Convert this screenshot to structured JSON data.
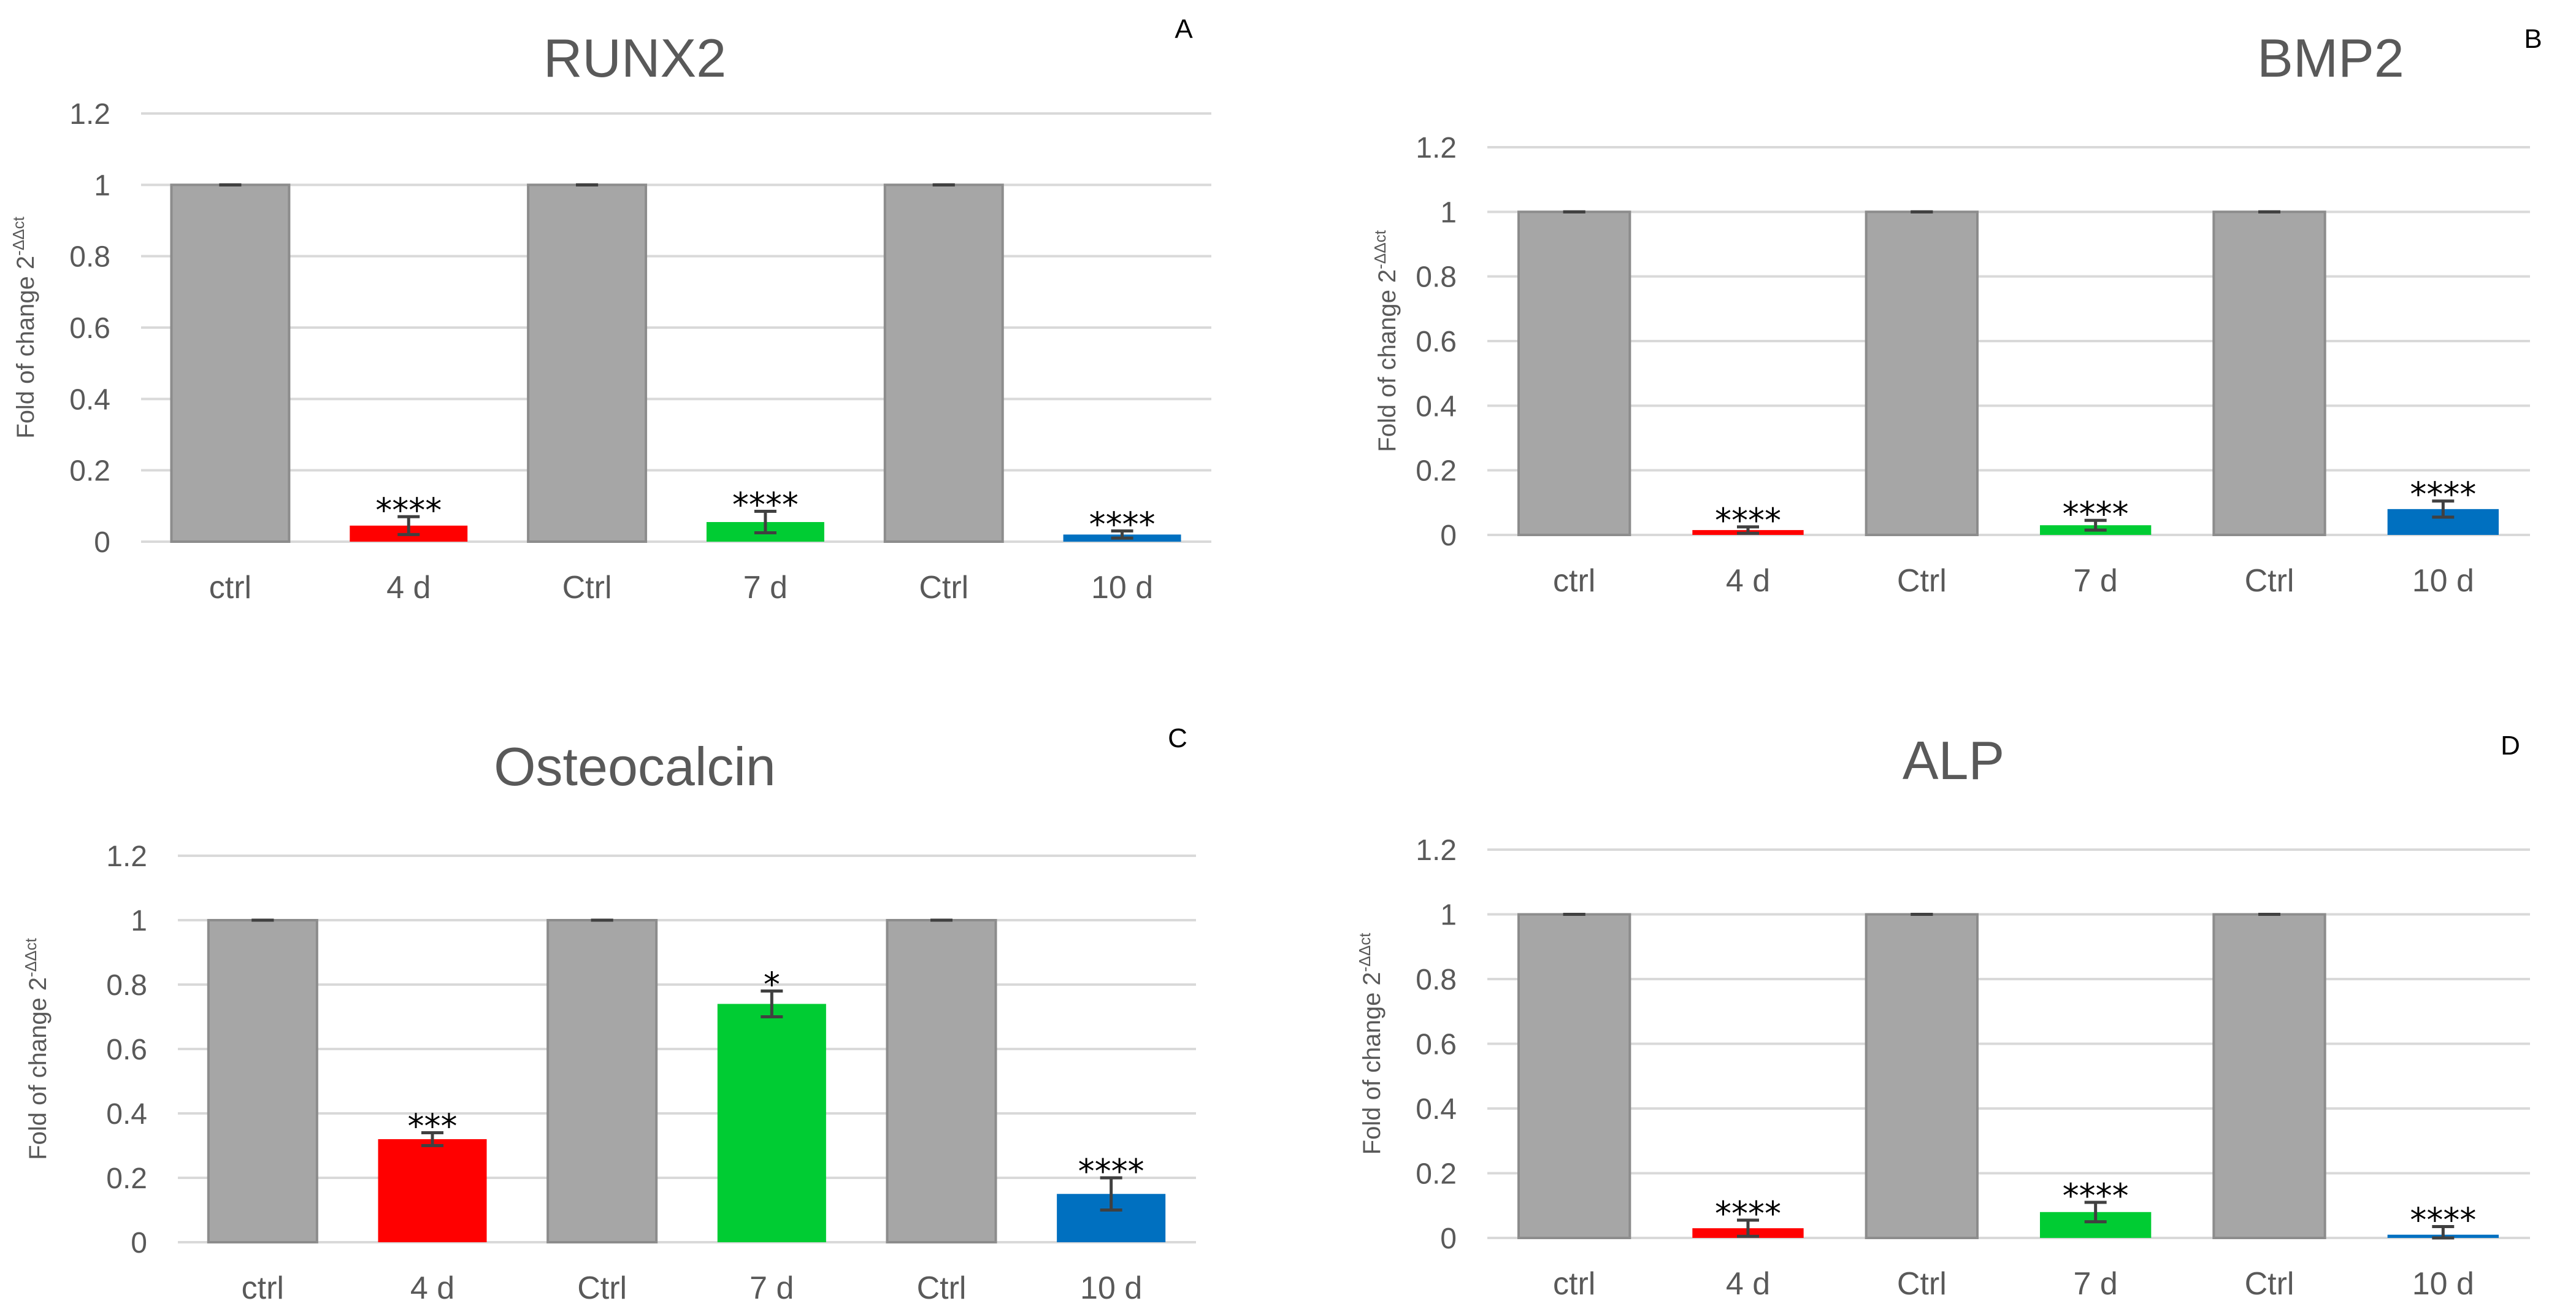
{
  "chart_data": [
    {
      "panel": "A",
      "type": "bar",
      "title": "RUNX2",
      "ylabel_main": "Fold of change 2",
      "ylabel_superscript": "-ΔΔct",
      "xlabel": "",
      "ylim": [
        0,
        1.2
      ],
      "yticks": [
        "0",
        "0.2",
        "0.4",
        "0.6",
        "0.8",
        "1",
        "1.2"
      ],
      "categories": [
        "ctrl",
        "4 d",
        "Ctrl",
        "7 d",
        "Ctrl",
        "10 d"
      ],
      "values": [
        1,
        0.045,
        1,
        0.055,
        1,
        0.02
      ],
      "errors": [
        0,
        0.025,
        0,
        0.03,
        0,
        0.01
      ],
      "colors": [
        "#a6a6a6",
        "#ff0000",
        "#a6a6a6",
        "#00cc33",
        "#a6a6a6",
        "#0070c0"
      ],
      "significance": [
        "",
        "****",
        "",
        "****",
        "",
        "****"
      ],
      "grid": true
    },
    {
      "panel": "B",
      "type": "bar",
      "title": "BMP2",
      "ylabel_main": "Fold of change 2",
      "ylabel_superscript": "-ΔΔct",
      "xlabel": "",
      "ylim": [
        0,
        1.2
      ],
      "yticks": [
        "0",
        "0.2",
        "0.4",
        "0.6",
        "0.8",
        "1",
        "1.2"
      ],
      "categories": [
        "ctrl",
        "4 d",
        "Ctrl",
        "7 d",
        "Ctrl",
        "10 d"
      ],
      "values": [
        1,
        0.015,
        1,
        0.03,
        1,
        0.08
      ],
      "errors": [
        0,
        0.01,
        0,
        0.015,
        0,
        0.025
      ],
      "colors": [
        "#a6a6a6",
        "#ff0000",
        "#a6a6a6",
        "#00cc33",
        "#a6a6a6",
        "#0070c0"
      ],
      "significance": [
        "",
        "****",
        "",
        "****",
        "",
        "****"
      ],
      "grid": true
    },
    {
      "panel": "C",
      "type": "bar",
      "title": "Osteocalcin",
      "ylabel_main": "Fold of change 2",
      "ylabel_superscript": "-ΔΔct",
      "xlabel": "",
      "ylim": [
        0,
        1.2
      ],
      "yticks": [
        "0",
        "0.2",
        "0.4",
        "0.6",
        "0.8",
        "1",
        "1.2"
      ],
      "categories": [
        "ctrl",
        "4 d",
        "Ctrl",
        "7 d",
        "Ctrl",
        "10 d"
      ],
      "values": [
        1,
        0.32,
        1,
        0.74,
        1,
        0.15
      ],
      "errors": [
        0,
        0.02,
        0,
        0.04,
        0,
        0.05
      ],
      "colors": [
        "#a6a6a6",
        "#ff0000",
        "#a6a6a6",
        "#00cc33",
        "#a6a6a6",
        "#0070c0"
      ],
      "significance": [
        "",
        "***",
        "",
        "*",
        "",
        "****"
      ],
      "grid": true
    },
    {
      "panel": "D",
      "type": "bar",
      "title": "ALP",
      "ylabel_main": "Fold of change 2",
      "ylabel_superscript": "-ΔΔct",
      "xlabel": "",
      "ylim": [
        0,
        1.2
      ],
      "yticks": [
        "0",
        "0.2",
        "0.4",
        "0.6",
        "0.8",
        "1",
        "1.2"
      ],
      "categories": [
        "ctrl",
        "4 d",
        "Ctrl",
        "7 d",
        "Ctrl",
        "10 d"
      ],
      "values": [
        1,
        0.03,
        1,
        0.08,
        1,
        0.01
      ],
      "errors": [
        0,
        0.025,
        0,
        0.03,
        0,
        0.025
      ],
      "colors": [
        "#a6a6a6",
        "#ff0000",
        "#a6a6a6",
        "#00cc33",
        "#a6a6a6",
        "#0070c0"
      ],
      "significance": [
        "",
        "****",
        "",
        "****",
        "",
        "****"
      ],
      "grid": true
    }
  ]
}
